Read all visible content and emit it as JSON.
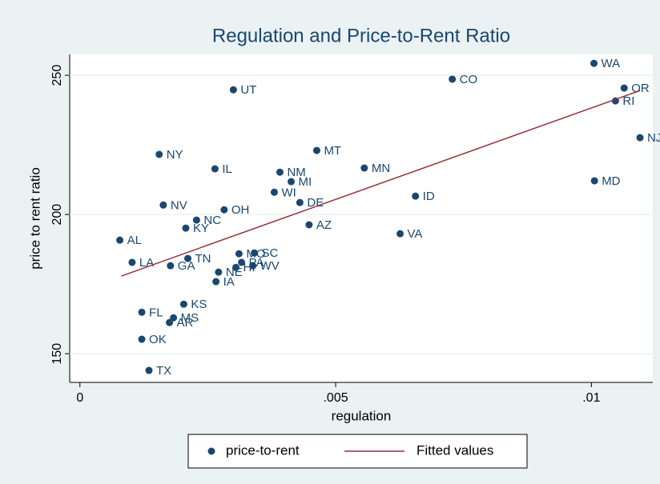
{
  "chart_data": {
    "type": "scatter",
    "title": "Regulation and Price-to-Rent Ratio",
    "x_label": "regulation",
    "y_label": "price to rent ratio",
    "xlim": [
      -0.0002,
      0.0112
    ],
    "ylim": [
      139.7,
      257.5
    ],
    "xticks": [
      0,
      {
        "value": 0.005,
        "label": ".005"
      },
      {
        "value": 0.01,
        "label": ".01"
      }
    ],
    "yticks": [
      150,
      200,
      250
    ],
    "grid": true,
    "legend": "bottom",
    "series": [
      {
        "name": "price-to-rent",
        "type": "scatter",
        "color": "#1a476f",
        "point_labels": [
          "WA",
          "OR",
          "RI",
          "NJ",
          "MD",
          "CO",
          "UT",
          "NY",
          "IL",
          "MT",
          "NM",
          "MI",
          "WI",
          "DE",
          "MN",
          "ID",
          "NV",
          "OH",
          "NC",
          "KY",
          "AZ",
          "VA",
          "AL",
          "LA",
          "TN",
          "GA",
          "MO",
          "SC",
          "PA",
          "WV",
          "HI",
          "NE",
          "IA",
          "KS",
          "FL",
          "MS",
          "AR",
          "OK",
          "TX"
        ],
        "x": [
          0.01005,
          0.01064,
          0.01047,
          0.01095,
          0.01006,
          0.00728,
          0.003,
          0.00155,
          0.00264,
          0.00463,
          0.00391,
          0.00413,
          0.0038,
          0.0043,
          0.00556,
          0.00656,
          0.00163,
          0.00282,
          0.00228,
          0.00207,
          0.00448,
          0.00626,
          0.00078,
          0.00102,
          0.00211,
          0.00177,
          0.00311,
          0.00341,
          0.00316,
          0.00338,
          0.00305,
          0.00271,
          0.00266,
          0.00203,
          0.00121,
          0.00183,
          0.00175,
          0.00121,
          0.00135
        ],
        "values": [
          254.3,
          245.4,
          240.8,
          227.6,
          212.1,
          248.6,
          244.8,
          221.6,
          216.4,
          223.0,
          215.2,
          211.8,
          208.0,
          204.3,
          216.7,
          206.6,
          203.4,
          201.7,
          198.0,
          195.1,
          196.3,
          193.1,
          190.8,
          182.8,
          184.2,
          181.6,
          185.9,
          186.2,
          182.8,
          181.6,
          181.0,
          179.3,
          175.9,
          167.8,
          164.9,
          162.9,
          161.2,
          155.2,
          144.0
        ]
      },
      {
        "name": "Fitted values",
        "type": "line",
        "color": "#90353b",
        "x": [
          0.00081,
          0.01095
        ],
        "values": [
          177.9,
          244.5
        ]
      }
    ]
  }
}
